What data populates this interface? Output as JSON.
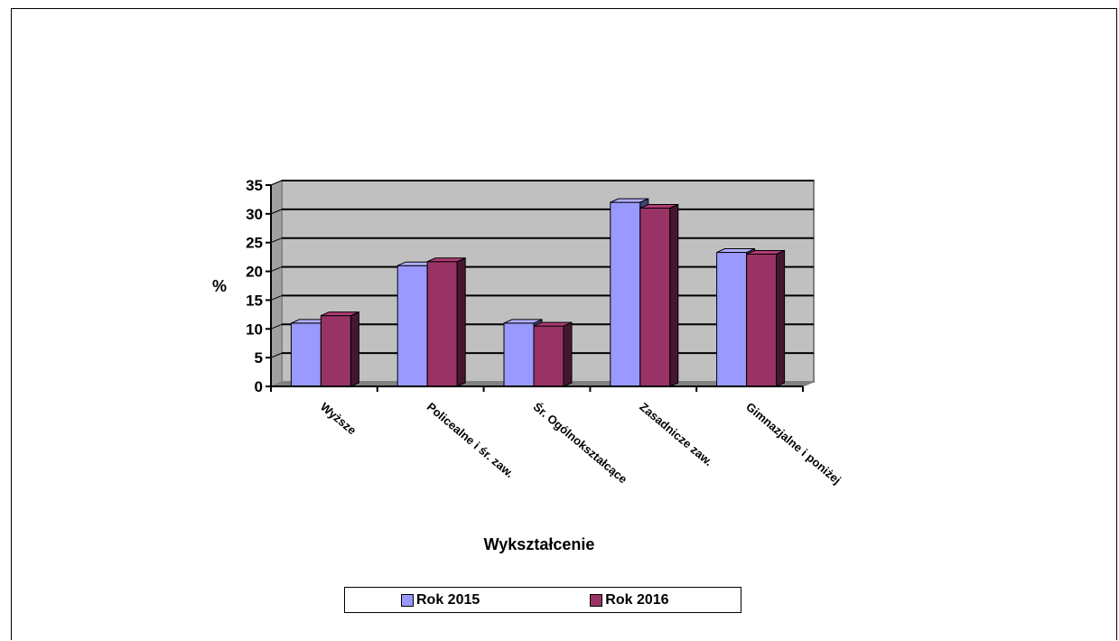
{
  "chart_data": {
    "type": "bar",
    "style": "3d-clustered-column",
    "categories": [
      "Wyższe",
      "Policealne i śr. zaw.",
      "Śr. Ogólnokształcące",
      "Zasadnicze zaw.",
      "Gimnazjalne i poniżej"
    ],
    "series": [
      {
        "name": "Rok 2015",
        "color": "#9999ff",
        "values": [
          11,
          21,
          11,
          32,
          23.3
        ]
      },
      {
        "name": "Rok 2016",
        "color": "#993366",
        "values": [
          12.3,
          21.7,
          10.5,
          31,
          23
        ]
      }
    ],
    "xlabel": "Wykształcenie",
    "ylabel": "%",
    "ylim": [
      0,
      35
    ],
    "yticks": [
      "0",
      "5",
      "10",
      "15",
      "20",
      "25",
      "30",
      "35"
    ],
    "grid": true,
    "plot_background": "#c0c0c0",
    "legend_position": "bottom"
  }
}
